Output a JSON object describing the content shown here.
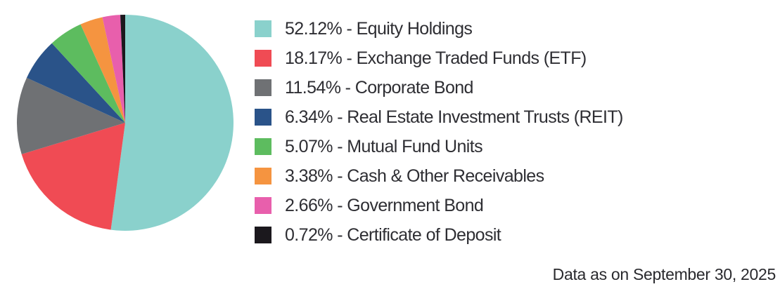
{
  "chart_data": {
    "type": "pie",
    "title": "",
    "legend_position": "right",
    "start_angle_deg": 0,
    "direction": "clockwise",
    "separator": " - ",
    "slices": [
      {
        "label": "Equity Holdings",
        "value": 52.12,
        "percent_text": "52.12%",
        "color": "#8AD1CC"
      },
      {
        "label": "Exchange Traded Funds (ETF)",
        "value": 18.17,
        "percent_text": "18.17%",
        "color": "#F04B54"
      },
      {
        "label": "Corporate Bond",
        "value": 11.54,
        "percent_text": "11.54%",
        "color": "#6F7174"
      },
      {
        "label": "Real Estate Investment Trusts (REIT)",
        "value": 6.34,
        "percent_text": "6.34%",
        "color": "#2A5389"
      },
      {
        "label": "Mutual Fund Units",
        "value": 5.07,
        "percent_text": "5.07%",
        "color": "#5DBC5F"
      },
      {
        "label": "Cash & Other Receivables",
        "value": 3.38,
        "percent_text": "3.38%",
        "color": "#F59440"
      },
      {
        "label": "Government Bond",
        "value": 2.66,
        "percent_text": "2.66%",
        "color": "#E85FAC"
      },
      {
        "label": "Certificate of Deposit",
        "value": 0.72,
        "percent_text": "0.72%",
        "color": "#1B181D"
      }
    ]
  },
  "footer": {
    "data_as_on": "Data as on September 30, 2025"
  },
  "colors": {
    "text": "#2E2E33",
    "background": "#FFFFFF"
  }
}
